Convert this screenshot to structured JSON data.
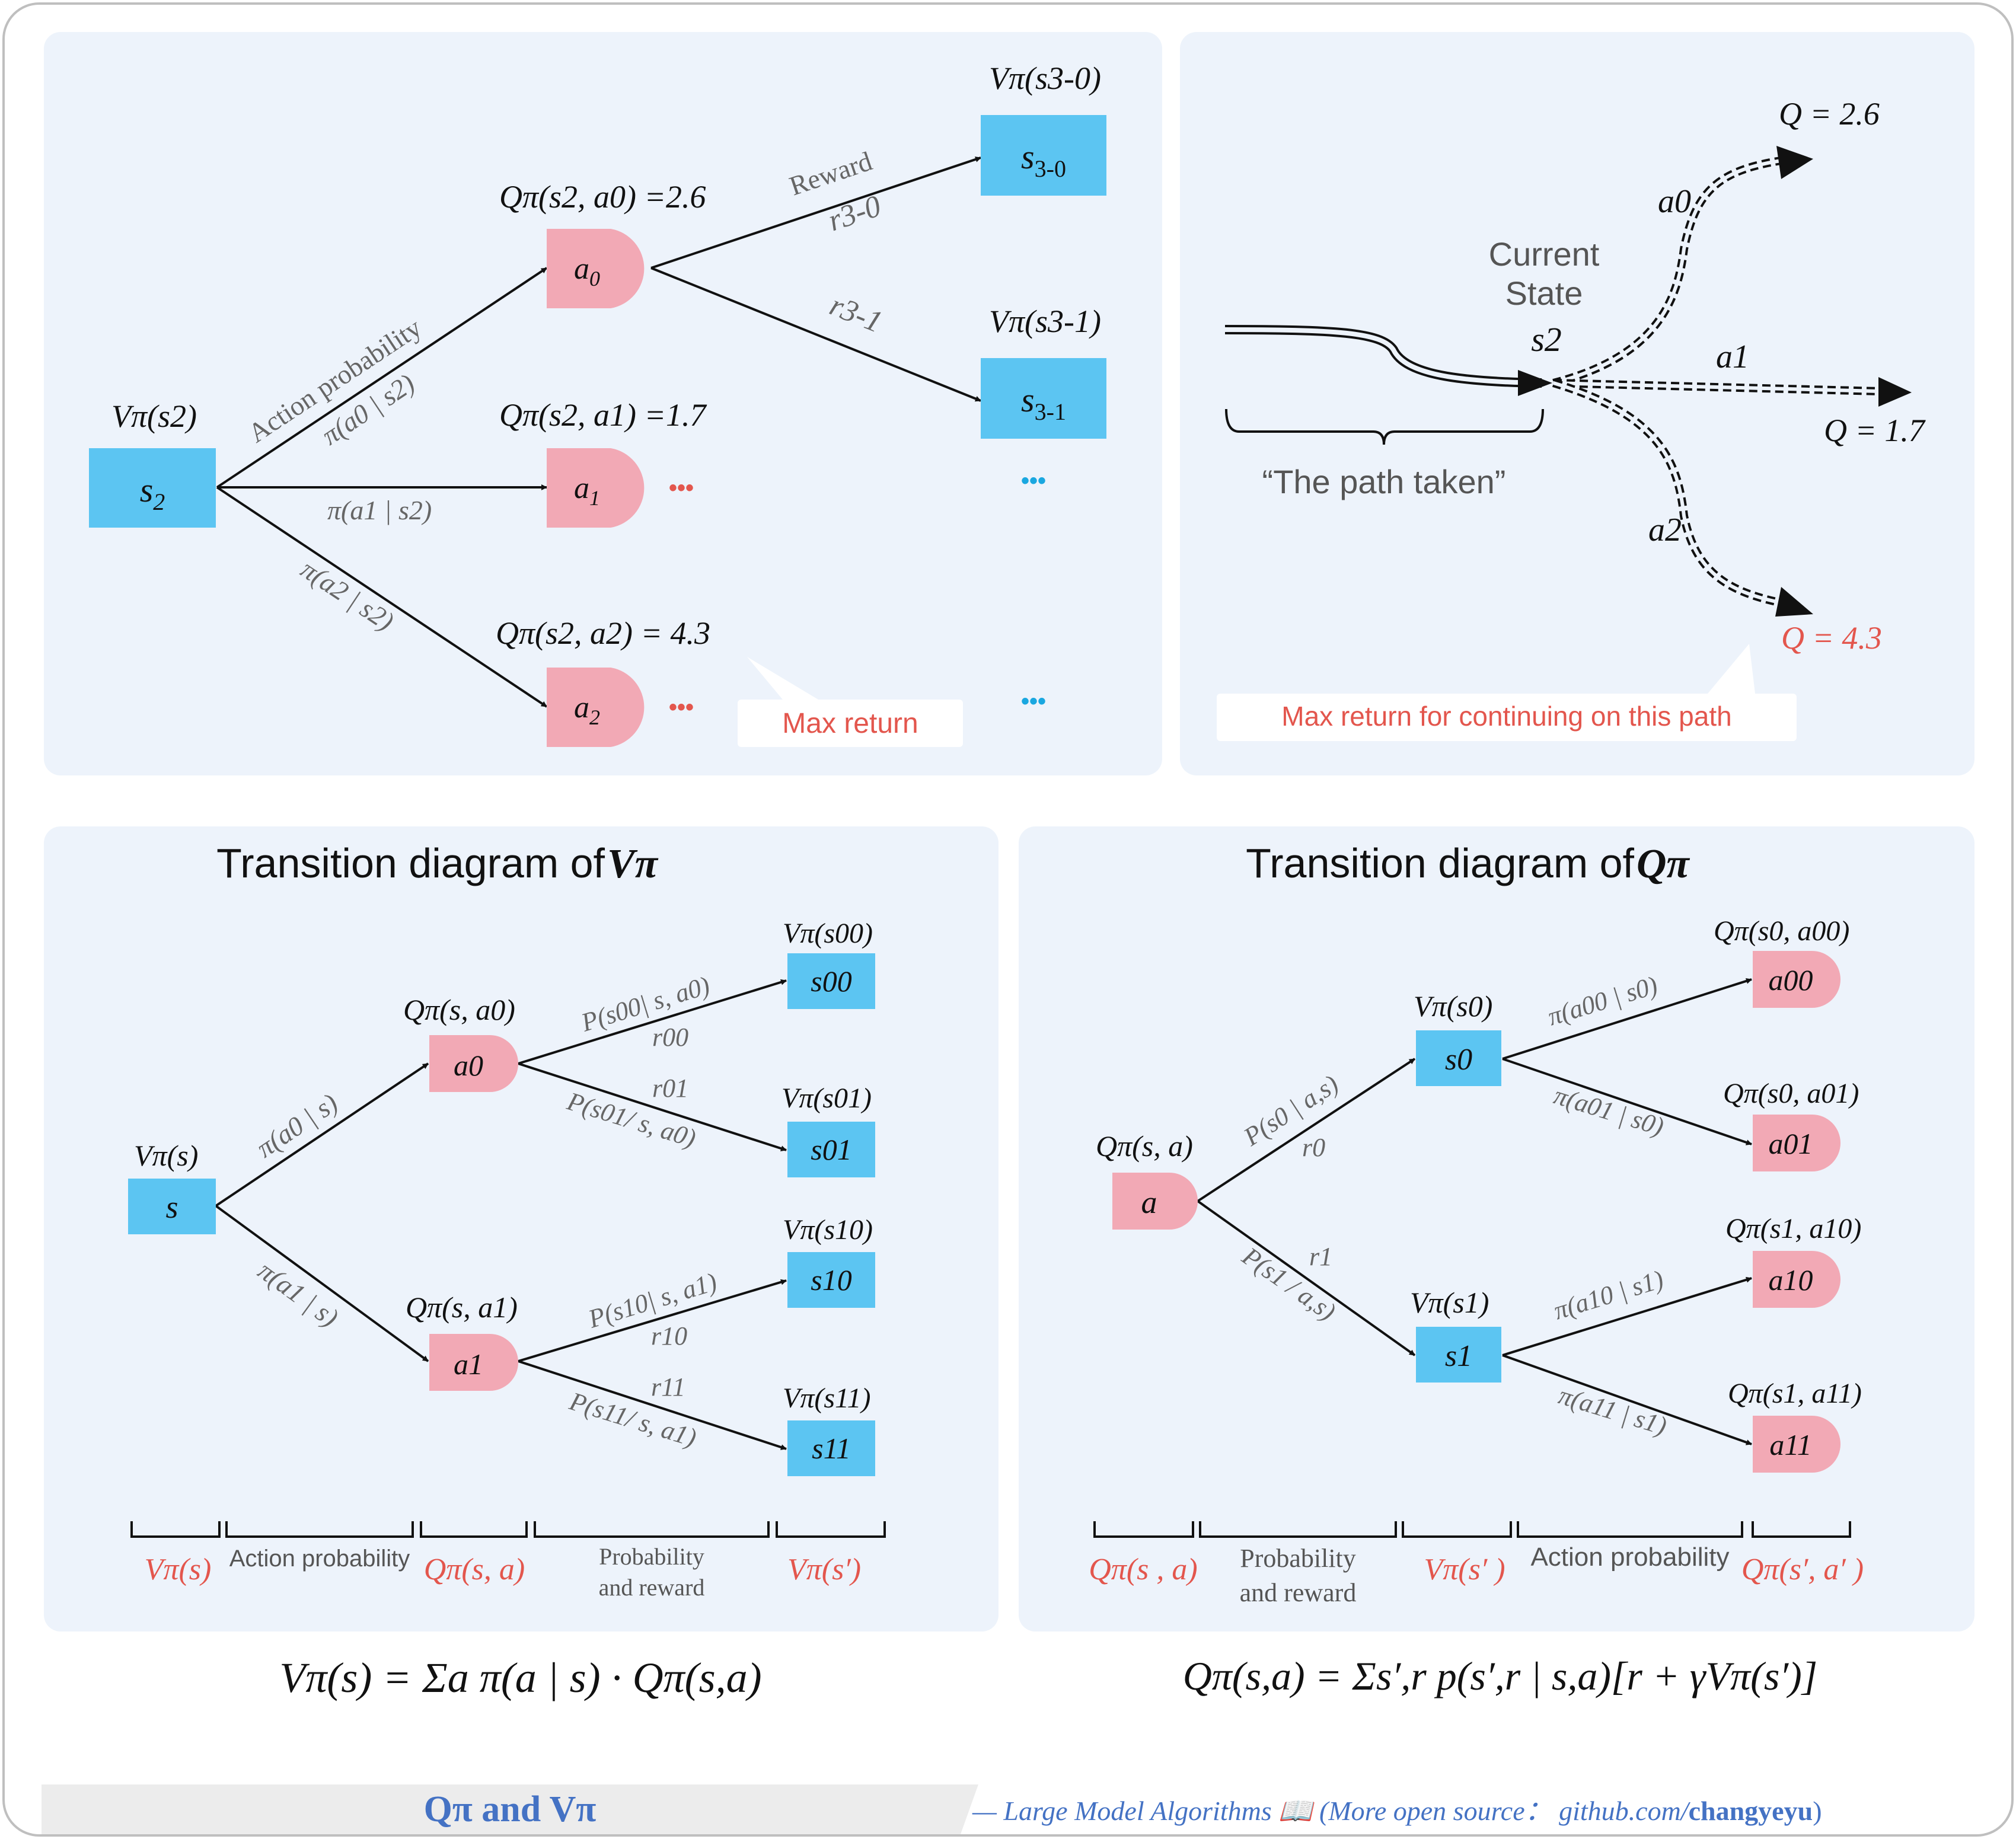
{
  "panel_tl": {
    "root": {
      "label": "s",
      "sub": "2",
      "value_label": "Vπ(s2)"
    },
    "actions": [
      {
        "label": "a",
        "sub": "0",
        "q_label": "Qπ(s2, a0) =2.6",
        "prob_label": "π(a0 | s2)"
      },
      {
        "label": "a",
        "sub": "1",
        "q_label": "Qπ(s2, a1) =1.7",
        "prob_label": "π(a1 | s2)"
      },
      {
        "label": "a",
        "sub": "2",
        "q_label": "Qπ(s2, a2) = 4.3",
        "prob_label": "π(a2 | s2)"
      }
    ],
    "action_probability_label": "Action probability",
    "next_states": [
      {
        "label": "s",
        "sub": "3-0",
        "value_label": "Vπ(s3-0)",
        "reward": "r3-0"
      },
      {
        "label": "s",
        "sub": "3-1",
        "value_label": "Vπ(s3-1)",
        "reward": "r3-1"
      }
    ],
    "reward_label": "Reward",
    "ellipsis": "•••",
    "callout": "Max return"
  },
  "panel_tr": {
    "state_title_1": "Current",
    "state_title_2": "State",
    "state_label": "s2",
    "path_label": "“The path taken”",
    "branches": [
      {
        "action": "a0",
        "q": "Q = 2.6"
      },
      {
        "action": "a1",
        "q": "Q = 1.7"
      },
      {
        "action": "a2",
        "q": "Q = 4.3"
      }
    ],
    "callout": "Max return for continuing on this path"
  },
  "panel_bl": {
    "title": "Transition diagram of ",
    "title_sym": "Vπ",
    "nodes": {
      "s": "s",
      "a0": "a0",
      "a1": "a1",
      "s00": "s00",
      "s01": "s01",
      "s10": "s10",
      "s11": "s11"
    },
    "labels": {
      "v_s": "Vπ(s)",
      "q_a0": "Qπ(s, a0)",
      "q_a1": "Qπ(s, a1)",
      "v_s00": "Vπ(s00)",
      "v_s01": "Vπ(s01)",
      "v_s10": "Vπ(s10)",
      "v_s11": "Vπ(s11)",
      "pi_a0": "π(a0 | s)",
      "pi_a1": "π(a1 | s)",
      "p_s00": "P(s00| s, a0)",
      "r_00": "r00",
      "p_s01": "P(s01/ s, a0)",
      "r_01": "r01",
      "p_s10": "P(s10| s, a1)",
      "r_10": "r10",
      "p_s11": "P(s11/ s, a1)",
      "r_11": "r11"
    },
    "footer": [
      "Vπ(s)",
      "Action probability",
      "Qπ(s, a)",
      "Probability and reward",
      "Vπ(s′)"
    ],
    "formula": "Vπ(s) = Σa π(a | s) · Qπ(s,a)"
  },
  "panel_br": {
    "title": "Transition diagram of ",
    "title_sym": "Qπ",
    "nodes": {
      "a": "a",
      "s0": "s0",
      "s1": "s1",
      "a00": "a00",
      "a01": "a01",
      "a10": "a10",
      "a11": "a11"
    },
    "labels": {
      "q_sa": "Qπ(s, a)",
      "v_s0": "Vπ(s0)",
      "v_s1": "Vπ(s1)",
      "q_00": "Qπ(s0, a00)",
      "q_01": "Qπ(s0, a01)",
      "q_10": "Qπ(s1, a10)",
      "q_11": "Qπ(s1, a11)",
      "p_s0": "P(s0 | a,s)",
      "r0": "r0",
      "p_s1": "P(s1 / a,s)",
      "r1": "r1",
      "pi_00": "π(a00 | s0)",
      "pi_01": "π(a01 | s0)",
      "pi_10": "π(a10 | s1)",
      "pi_11": "π(a11 | s1)"
    },
    "footer": [
      "Qπ(s , a)",
      "Probability and reward",
      "Vπ(s′ )",
      "Action probability",
      "Qπ(s′, a′ )"
    ],
    "formula": "Qπ(s,a) = Σs′,r p(s′,r | s,a)[r + γVπ(s′)]"
  },
  "banner": {
    "title": "Qπ and Vπ",
    "credit": "— Large Model Algorithms 📖 (More open source：  github.com/",
    "credit_bold": "changyeyu",
    "credit_end": ")"
  },
  "colors": {
    "panel_bg": "#edf3fb",
    "state_fill": "#5cc5f2",
    "action_fill": "#f2a9b5",
    "accent_red": "#e3564d",
    "blue_dots": "#1aa7e0",
    "banner_blue": "#4472c4"
  }
}
